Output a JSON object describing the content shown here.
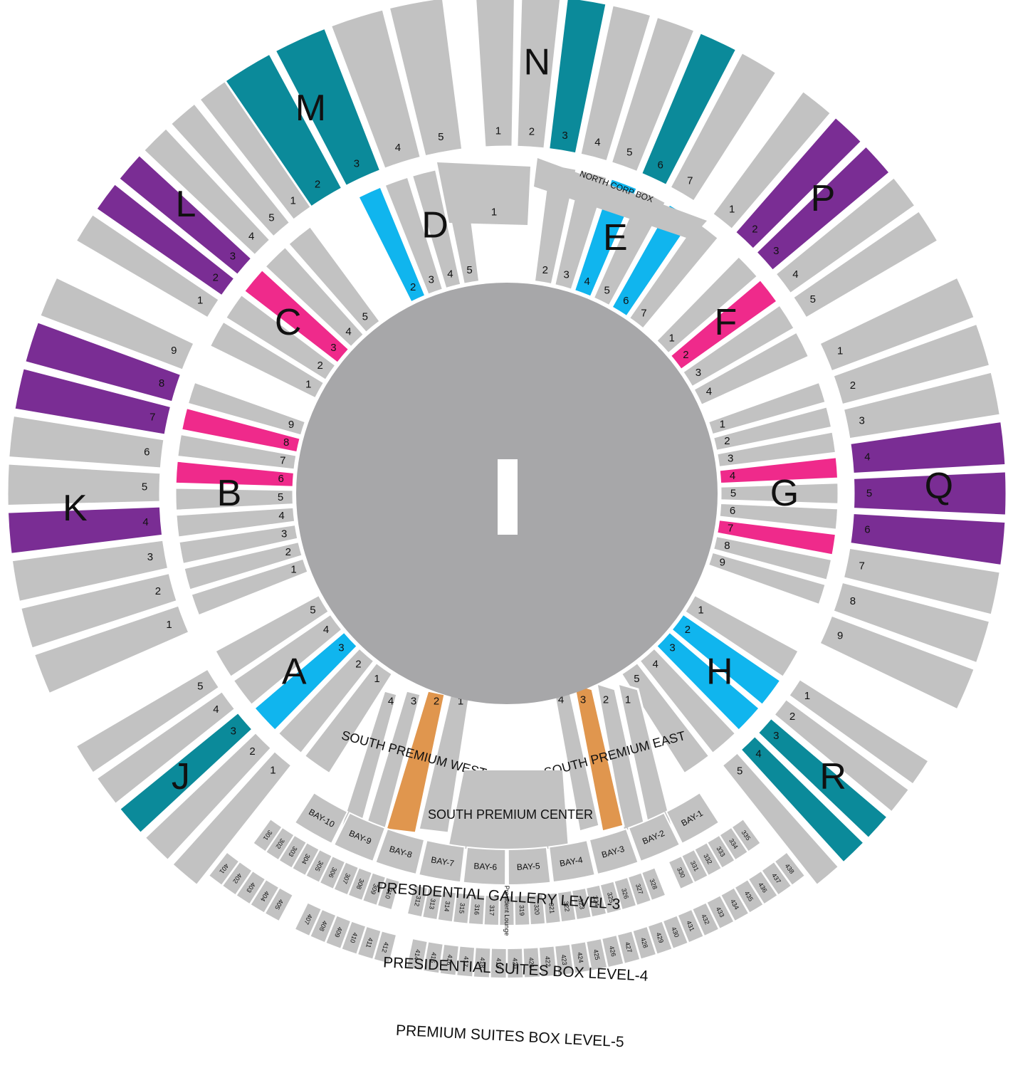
{
  "colors": {
    "background": "#ffffff",
    "section": "#c2c2c2",
    "field": "#a7a7a9",
    "teal": "#0b8a9a",
    "purple": "#7a2d94",
    "pink": "#ef2a8b",
    "cyan": "#10b5ee",
    "orange": "#e0964e"
  },
  "icons": [
    "pitch-icon"
  ],
  "pitch": {
    "label": "I"
  },
  "outer_ring": {
    "stands": [
      {
        "letter": "M",
        "blocks": [
          {
            "n": "2",
            "color": "teal"
          },
          {
            "n": "3",
            "color": "teal"
          },
          {
            "n": "4",
            "color": "section"
          },
          {
            "n": "5",
            "color": "section"
          }
        ]
      },
      {
        "letter": "N",
        "blocks": [
          {
            "n": "1",
            "color": "section"
          },
          {
            "n": "2",
            "color": "section"
          },
          {
            "n": "3",
            "color": "teal"
          },
          {
            "n": "4",
            "color": "section"
          },
          {
            "n": "5",
            "color": "section"
          },
          {
            "n": "6",
            "color": "teal"
          },
          {
            "n": "7",
            "color": "section"
          }
        ]
      },
      {
        "letter": "P",
        "blocks": [
          {
            "n": "1",
            "color": "section"
          },
          {
            "n": "2",
            "color": "purple"
          },
          {
            "n": "3",
            "color": "purple"
          },
          {
            "n": "4",
            "color": "section"
          },
          {
            "n": "5",
            "color": "section"
          }
        ]
      },
      {
        "letter": "Q",
        "blocks": [
          {
            "n": "1",
            "color": "section"
          },
          {
            "n": "2",
            "color": "section"
          },
          {
            "n": "3",
            "color": "section"
          },
          {
            "n": "4",
            "color": "purple"
          },
          {
            "n": "5",
            "color": "purple"
          },
          {
            "n": "6",
            "color": "purple"
          },
          {
            "n": "7",
            "color": "section"
          },
          {
            "n": "8",
            "color": "section"
          },
          {
            "n": "9",
            "color": "section"
          }
        ]
      },
      {
        "letter": "R",
        "blocks": [
          {
            "n": "1",
            "color": "section"
          },
          {
            "n": "2",
            "color": "section"
          },
          {
            "n": "3",
            "color": "teal"
          },
          {
            "n": "4",
            "color": "teal"
          },
          {
            "n": "5",
            "color": "section"
          }
        ]
      },
      {
        "letter": "J",
        "blocks": [
          {
            "n": "1",
            "color": "section"
          },
          {
            "n": "2",
            "color": "section"
          },
          {
            "n": "3",
            "color": "teal"
          },
          {
            "n": "4",
            "color": "section"
          },
          {
            "n": "5",
            "color": "section"
          }
        ]
      },
      {
        "letter": "K",
        "blocks": [
          {
            "n": "1",
            "color": "section"
          },
          {
            "n": "2",
            "color": "section"
          },
          {
            "n": "3",
            "color": "section"
          },
          {
            "n": "4",
            "color": "purple"
          },
          {
            "n": "5",
            "color": "section"
          },
          {
            "n": "6",
            "color": "section"
          },
          {
            "n": "7",
            "color": "purple"
          },
          {
            "n": "8",
            "color": "purple"
          },
          {
            "n": "9",
            "color": "section"
          }
        ]
      },
      {
        "letter": "L",
        "blocks": [
          {
            "n": "1",
            "color": "section"
          },
          {
            "n": "2",
            "color": "purple"
          },
          {
            "n": "3",
            "color": "purple"
          },
          {
            "n": "4",
            "color": "section"
          },
          {
            "n": "5",
            "color": "section"
          },
          {
            "n": "1",
            "color": "section"
          }
        ]
      }
    ]
  },
  "inner_ring": {
    "stands": [
      {
        "letter": "D",
        "blocks": [
          {
            "n": "2",
            "color": "cyan"
          },
          {
            "n": "3",
            "color": "section"
          },
          {
            "n": "4",
            "color": "section"
          },
          {
            "n": "5",
            "color": "section"
          }
        ]
      },
      {
        "letter": "E",
        "blocks": [
          {
            "n": "2",
            "color": "section"
          },
          {
            "n": "3",
            "color": "section"
          },
          {
            "n": "4",
            "color": "cyan"
          },
          {
            "n": "5",
            "color": "section"
          },
          {
            "n": "6",
            "color": "cyan"
          },
          {
            "n": "7",
            "color": "section"
          }
        ]
      },
      {
        "letter": "F",
        "blocks": [
          {
            "n": "1",
            "color": "section"
          },
          {
            "n": "2",
            "color": "pink"
          },
          {
            "n": "3",
            "color": "section"
          },
          {
            "n": "4",
            "color": "section"
          }
        ]
      },
      {
        "letter": "G",
        "blocks": [
          {
            "n": "1",
            "color": "section"
          },
          {
            "n": "2",
            "color": "section"
          },
          {
            "n": "3",
            "color": "section"
          },
          {
            "n": "4",
            "color": "pink"
          },
          {
            "n": "5",
            "color": "section"
          },
          {
            "n": "6",
            "color": "section"
          },
          {
            "n": "7",
            "color": "pink"
          },
          {
            "n": "8",
            "color": "section"
          },
          {
            "n": "9",
            "color": "section"
          }
        ]
      },
      {
        "letter": "H",
        "blocks": [
          {
            "n": "1",
            "color": "section"
          },
          {
            "n": "2",
            "color": "cyan"
          },
          {
            "n": "3",
            "color": "cyan"
          },
          {
            "n": "4",
            "color": "section"
          },
          {
            "n": "5",
            "color": "section"
          }
        ]
      },
      {
        "letter": "A",
        "blocks": [
          {
            "n": "1",
            "color": "section"
          },
          {
            "n": "2",
            "color": "section"
          },
          {
            "n": "3",
            "color": "cyan"
          },
          {
            "n": "4",
            "color": "section"
          },
          {
            "n": "5",
            "color": "section"
          }
        ]
      },
      {
        "letter": "B",
        "blocks": [
          {
            "n": "1",
            "color": "section"
          },
          {
            "n": "2",
            "color": "section"
          },
          {
            "n": "3",
            "color": "section"
          },
          {
            "n": "4",
            "color": "section"
          },
          {
            "n": "5",
            "color": "section"
          },
          {
            "n": "6",
            "color": "pink"
          },
          {
            "n": "7",
            "color": "section"
          },
          {
            "n": "8",
            "color": "pink"
          },
          {
            "n": "9",
            "color": "section"
          }
        ]
      },
      {
        "letter": "C",
        "blocks": [
          {
            "n": "1",
            "color": "section"
          },
          {
            "n": "2",
            "color": "section"
          },
          {
            "n": "3",
            "color": "pink"
          },
          {
            "n": "4",
            "color": "section"
          },
          {
            "n": "5",
            "color": "section"
          }
        ]
      }
    ],
    "north_top": {
      "n": "1"
    },
    "north_corp_box": "NORTH CORP BOX",
    "south_premium_west": {
      "label": "SOUTH PREMIUM WEST",
      "blocks": [
        "1",
        "2",
        "3",
        "4"
      ]
    },
    "south_premium_east": {
      "label": "SOUTH PREMIUM EAST",
      "blocks": [
        "1",
        "2",
        "3",
        "4"
      ]
    },
    "south_premium_center": "SOUTH PREMIUM CENTER"
  },
  "bays": [
    "BAY-10",
    "BAY-9",
    "BAY-8",
    "BAY-7",
    "BAY-6",
    "BAY-5",
    "BAY-4",
    "BAY-3",
    "BAY-2",
    "BAY-1"
  ],
  "level3": {
    "title": "PRESIDENTIAL GALLERY LEVEL-3",
    "boxes": [
      "301",
      "302",
      "303",
      "304",
      "305",
      "306",
      "307",
      "308",
      "309",
      "310",
      "",
      "312",
      "313",
      "314",
      "315",
      "316",
      "317",
      "President Lounge",
      "319",
      "320",
      "321",
      "322",
      "323",
      "324",
      "325",
      "326",
      "327",
      "328",
      "",
      "330",
      "331",
      "332",
      "333",
      "334",
      "335"
    ]
  },
  "level4": {
    "title": "PRESIDENTIAL SUITES BOX LEVEL-4",
    "boxes": [
      "401",
      "402",
      "403",
      "404",
      "405",
      "",
      "407",
      "408",
      "409",
      "410",
      "411",
      "412",
      "",
      "414",
      "415",
      "416",
      "417",
      "418",
      "419",
      "420",
      "421",
      "422",
      "423",
      "424",
      "425",
      "426",
      "427",
      "428",
      "429",
      "430",
      "431",
      "432",
      "433",
      "434",
      "435",
      "436",
      "437",
      "438"
    ]
  },
  "level5": {
    "title": "PREMIUM SUITES BOX LEVEL-5"
  }
}
